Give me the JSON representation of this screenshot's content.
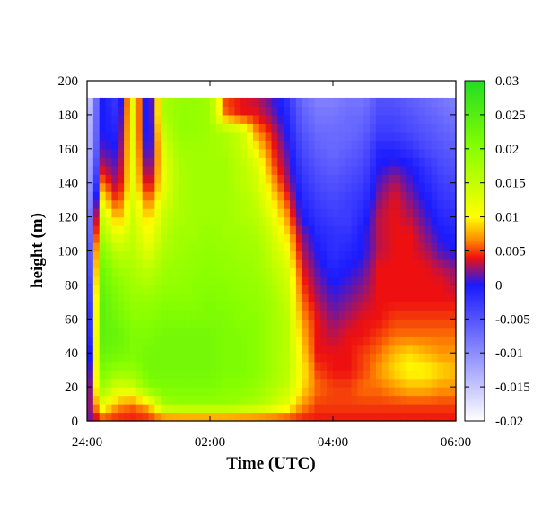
{
  "chart_data": {
    "type": "heatmap",
    "title": "",
    "xlabel": "Time (UTC)",
    "ylabel": "height (m)",
    "x_unit": "hours UTC",
    "xlim": [
      0,
      6
    ],
    "x_ticks": [
      {
        "value": 0,
        "label": "24:00"
      },
      {
        "value": 2,
        "label": "02:00"
      },
      {
        "value": 4,
        "label": "04:00"
      },
      {
        "value": 6,
        "label": "06:00"
      }
    ],
    "ylim": [
      0,
      200
    ],
    "y_ticks": [
      0,
      20,
      40,
      60,
      80,
      100,
      120,
      140,
      160,
      180,
      200
    ],
    "data_y_max": 190,
    "colorbar": {
      "range": [
        -0.02,
        0.03
      ],
      "ticks": [
        "0.03",
        "0.025",
        "0.02",
        "0.015",
        "0.01",
        "0.005",
        "0",
        "-0.005",
        "-0.01",
        "-0.015",
        "-0.02"
      ],
      "colors": [
        {
          "value": -0.02,
          "color": "#ffffff"
        },
        {
          "value": 0.0,
          "color": "#1a1aff"
        },
        {
          "value": 0.004,
          "color": "#ee1010"
        },
        {
          "value": 0.0065,
          "color": "#ff8800"
        },
        {
          "value": 0.01,
          "color": "#ffff00"
        },
        {
          "value": 0.02,
          "color": "#88ff00"
        },
        {
          "value": 0.03,
          "color": "#22dd22"
        }
      ]
    },
    "grid": false,
    "grid_hours": [
      0.0,
      0.25,
      0.5,
      0.75,
      1.0,
      1.25,
      1.5,
      1.75,
      2.0,
      2.25,
      2.5,
      2.75,
      3.0,
      3.25,
      3.5,
      3.75,
      4.0,
      4.25,
      4.5,
      4.75,
      5.0,
      5.25,
      5.5,
      5.75,
      6.0
    ],
    "heights": [
      0,
      10,
      20,
      30,
      40,
      50,
      60,
      70,
      80,
      90,
      100,
      110,
      120,
      130,
      140,
      150,
      160,
      170,
      180,
      190
    ],
    "values": [
      [
        0.001,
        0.0,
        -0.002,
        -0.004,
        -0.006,
        -0.008,
        -0.009,
        -0.01,
        -0.011,
        -0.012,
        -0.012,
        -0.013,
        -0.013,
        -0.014,
        -0.015,
        -0.015,
        -0.016,
        -0.016,
        -0.017,
        -0.018
      ],
      [
        0.004,
        0.012,
        0.018,
        0.021,
        0.023,
        0.024,
        0.024,
        0.024,
        0.023,
        0.022,
        0.02,
        0.017,
        0.014,
        0.01,
        0.006,
        0.003,
        0.001,
        0.0,
        0.0,
        0.0
      ],
      [
        0.004,
        0.007,
        0.013,
        0.019,
        0.022,
        0.023,
        0.022,
        0.021,
        0.02,
        0.018,
        0.015,
        0.011,
        0.007,
        0.004,
        0.002,
        0.001,
        0.0,
        -0.001,
        -0.002,
        -0.003
      ],
      [
        0.004,
        0.006,
        0.014,
        0.019,
        0.021,
        0.021,
        0.02,
        0.019,
        0.018,
        0.017,
        0.016,
        0.015,
        0.014,
        0.013,
        0.012,
        0.012,
        0.012,
        0.012,
        0.012,
        0.012
      ],
      [
        0.004,
        0.008,
        0.02,
        0.022,
        0.022,
        0.021,
        0.02,
        0.019,
        0.017,
        0.015,
        0.012,
        0.01,
        0.008,
        0.005,
        0.002,
        0.0,
        -0.002,
        -0.003,
        -0.003,
        -0.003
      ],
      [
        0.004,
        0.018,
        0.021,
        0.022,
        0.022,
        0.022,
        0.021,
        0.02,
        0.019,
        0.018,
        0.017,
        0.016,
        0.015,
        0.013,
        0.012,
        0.012,
        0.013,
        0.015,
        0.017,
        0.017
      ],
      [
        0.004,
        0.019,
        0.021,
        0.022,
        0.022,
        0.022,
        0.021,
        0.02,
        0.019,
        0.019,
        0.018,
        0.018,
        0.017,
        0.017,
        0.017,
        0.017,
        0.018,
        0.019,
        0.019,
        0.019
      ],
      [
        0.004,
        0.019,
        0.021,
        0.022,
        0.022,
        0.022,
        0.021,
        0.02,
        0.02,
        0.019,
        0.019,
        0.018,
        0.018,
        0.018,
        0.018,
        0.018,
        0.018,
        0.019,
        0.019,
        0.019
      ],
      [
        0.004,
        0.019,
        0.021,
        0.022,
        0.022,
        0.022,
        0.021,
        0.021,
        0.02,
        0.02,
        0.019,
        0.019,
        0.018,
        0.018,
        0.018,
        0.018,
        0.018,
        0.018,
        0.018,
        0.018
      ],
      [
        0.004,
        0.019,
        0.02,
        0.021,
        0.021,
        0.021,
        0.021,
        0.02,
        0.02,
        0.019,
        0.019,
        0.018,
        0.018,
        0.018,
        0.018,
        0.018,
        0.017,
        0.017,
        0.006,
        0.005
      ],
      [
        0.004,
        0.018,
        0.02,
        0.021,
        0.021,
        0.021,
        0.02,
        0.02,
        0.019,
        0.019,
        0.018,
        0.018,
        0.017,
        0.017,
        0.016,
        0.016,
        0.015,
        0.015,
        0.004,
        0.004
      ],
      [
        0.004,
        0.017,
        0.019,
        0.02,
        0.02,
        0.02,
        0.02,
        0.019,
        0.019,
        0.018,
        0.018,
        0.017,
        0.016,
        0.015,
        0.014,
        0.013,
        0.01,
        0.007,
        0.004,
        0.003
      ],
      [
        0.004,
        0.015,
        0.017,
        0.018,
        0.018,
        0.018,
        0.018,
        0.018,
        0.017,
        0.016,
        0.015,
        0.014,
        0.012,
        0.01,
        0.008,
        0.006,
        0.005,
        0.004,
        0.002,
        0.001
      ],
      [
        0.004,
        0.012,
        0.015,
        0.016,
        0.016,
        0.016,
        0.016,
        0.015,
        0.014,
        0.013,
        0.011,
        0.009,
        0.007,
        0.005,
        0.003,
        0.002,
        0.001,
        0.0,
        -0.001,
        -0.002
      ],
      [
        0.004,
        0.007,
        0.009,
        0.01,
        0.009,
        0.008,
        0.007,
        0.006,
        0.005,
        0.004,
        0.003,
        0.002,
        0.0,
        -0.001,
        -0.002,
        -0.003,
        -0.004,
        -0.005,
        -0.006,
        -0.007
      ],
      [
        0.004,
        0.005,
        0.006,
        0.005,
        0.004,
        0.004,
        0.004,
        0.003,
        0.002,
        0.001,
        0.0,
        -0.001,
        -0.002,
        -0.003,
        -0.004,
        -0.005,
        -0.006,
        -0.007,
        -0.008,
        -0.009
      ],
      [
        0.004,
        0.005,
        0.005,
        0.004,
        0.004,
        0.003,
        0.002,
        0.001,
        0.0,
        -0.001,
        -0.002,
        -0.002,
        -0.003,
        -0.004,
        -0.005,
        -0.006,
        -0.007,
        -0.007,
        -0.008,
        -0.009
      ],
      [
        0.004,
        0.005,
        0.005,
        0.004,
        0.004,
        0.004,
        0.003,
        0.002,
        0.001,
        0.0,
        -0.001,
        -0.002,
        -0.003,
        -0.003,
        -0.004,
        -0.005,
        -0.006,
        -0.007,
        -0.007,
        -0.008
      ],
      [
        0.004,
        0.005,
        0.006,
        0.005,
        0.005,
        0.004,
        0.004,
        0.003,
        0.002,
        0.001,
        0.0,
        0.0,
        -0.001,
        -0.002,
        -0.003,
        -0.004,
        -0.005,
        -0.006,
        -0.007,
        -0.008
      ],
      [
        0.004,
        0.005,
        0.006,
        0.007,
        0.006,
        0.005,
        0.004,
        0.004,
        0.004,
        0.004,
        0.003,
        0.003,
        0.003,
        0.002,
        0.001,
        0.0,
        -0.001,
        -0.003,
        -0.004,
        -0.005
      ],
      [
        0.004,
        0.005,
        0.007,
        0.009,
        0.008,
        0.006,
        0.005,
        0.004,
        0.004,
        0.004,
        0.004,
        0.004,
        0.004,
        0.004,
        0.003,
        0.001,
        -0.001,
        -0.003,
        -0.004,
        -0.005
      ],
      [
        0.004,
        0.005,
        0.008,
        0.01,
        0.009,
        0.006,
        0.005,
        0.004,
        0.004,
        0.004,
        0.004,
        0.004,
        0.003,
        0.002,
        0.001,
        0.0,
        -0.002,
        -0.004,
        -0.005,
        -0.006
      ],
      [
        0.004,
        0.005,
        0.008,
        0.01,
        0.008,
        0.006,
        0.005,
        0.004,
        0.004,
        0.004,
        0.003,
        0.002,
        0.001,
        0.0,
        -0.001,
        -0.002,
        -0.004,
        -0.005,
        -0.006,
        -0.007
      ],
      [
        0.004,
        0.005,
        0.007,
        0.009,
        0.007,
        0.006,
        0.005,
        0.004,
        0.004,
        0.003,
        0.001,
        0.0,
        -0.001,
        -0.002,
        -0.003,
        -0.004,
        -0.005,
        -0.006,
        -0.007,
        -0.008
      ],
      [
        0.004,
        0.005,
        0.007,
        0.008,
        0.007,
        0.006,
        0.005,
        0.004,
        0.003,
        0.002,
        0.0,
        -0.001,
        -0.002,
        -0.003,
        -0.004,
        -0.005,
        -0.006,
        -0.007,
        -0.008,
        -0.009
      ]
    ]
  }
}
